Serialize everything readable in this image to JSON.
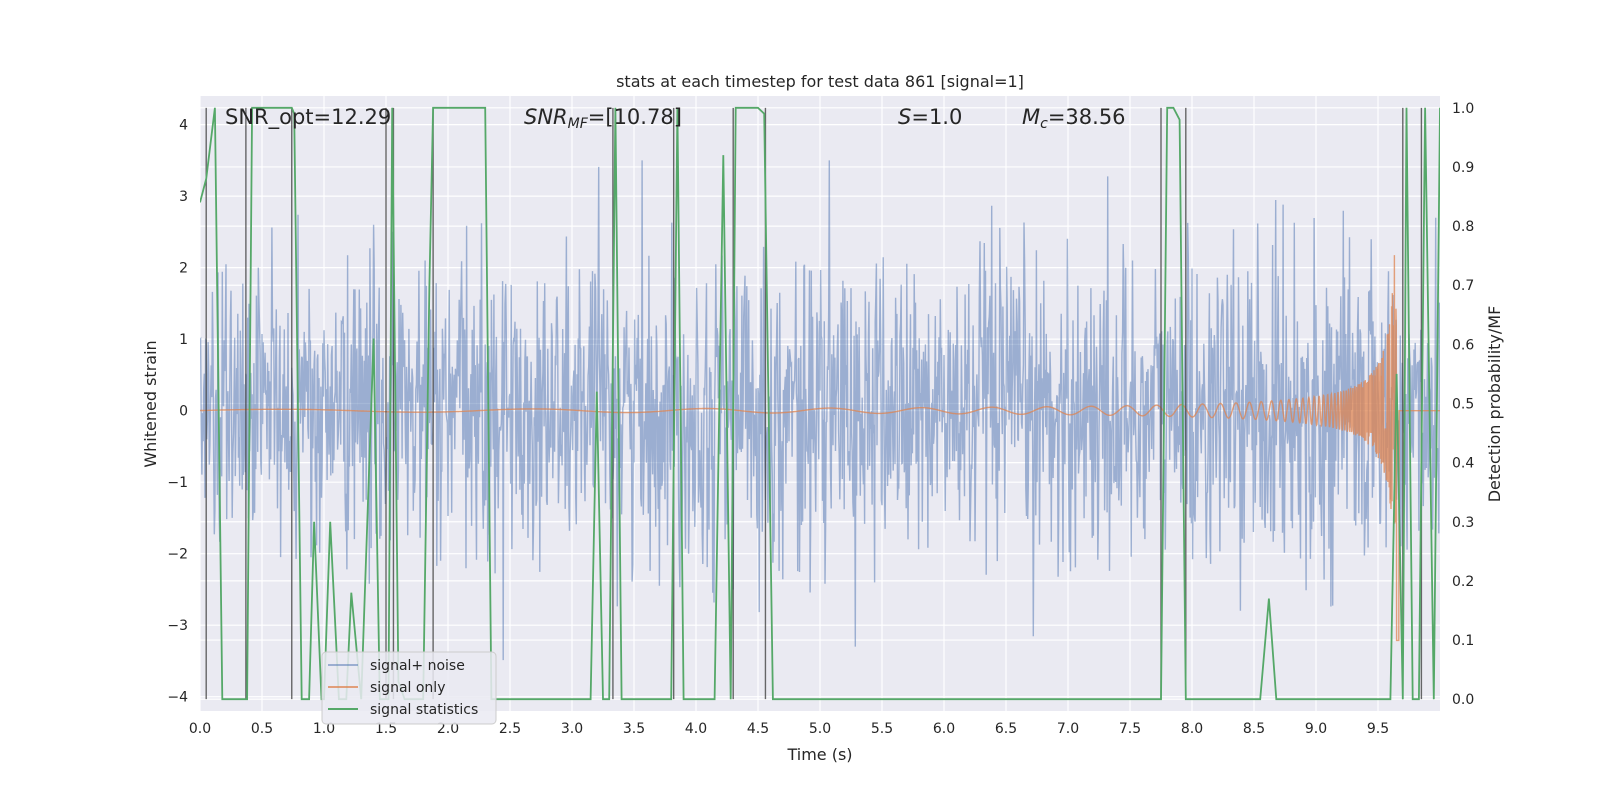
{
  "chart_data": {
    "type": "line",
    "title": "stats at each timestep for test data 861 [signal=1]",
    "xlabel": "Time (s)",
    "ylabel": "Whitened strain",
    "y2label": "Detection probability/MF",
    "xlim": [
      0.0,
      10.0
    ],
    "ylim": [
      -4.2,
      4.4
    ],
    "y2lim": [
      -0.02,
      1.02
    ],
    "xticks": [
      "0.0",
      "0.5",
      "1.0",
      "1.5",
      "2.0",
      "2.5",
      "3.0",
      "3.5",
      "4.0",
      "4.5",
      "5.0",
      "5.5",
      "6.0",
      "6.5",
      "7.0",
      "7.5",
      "8.0",
      "8.5",
      "9.0",
      "9.5"
    ],
    "yticks": [
      "4",
      "3",
      "2",
      "1",
      "0",
      "−1",
      "−2",
      "−3",
      "−4"
    ],
    "y2ticks": [
      "1.0",
      "0.9",
      "0.8",
      "0.7",
      "0.6",
      "0.5",
      "0.4",
      "0.3",
      "0.2",
      "0.1",
      "0.0"
    ],
    "grid": true,
    "legend_position": "lower-left",
    "annotations": {
      "snr_opt": "SNR_opt=12.29",
      "snr_mf_sym": "SNR",
      "snr_mf_sub": "MF",
      "snr_mf_val": "=[10.78]",
      "s_sym": "S",
      "s_val": "=1.0",
      "mc_sym": "M",
      "mc_sub": "c",
      "mc_val": "=38.56"
    },
    "series": [
      {
        "name": "signal+ noise",
        "color": "#4c72b0",
        "description": "whitened noisy strain, roughly ±2 with spikes to ±3.5",
        "noise_std": 1.0,
        "samples": 2000
      },
      {
        "name": "signal only",
        "color": "#dd8452",
        "description": "chirp growing in amplitude toward merger near t≈9.65 s",
        "peak_time": 9.65,
        "peak_amplitude": 3.3
      },
      {
        "name": "signal statistics",
        "color": "#55a868",
        "axis": "right",
        "x": [
          0.0,
          0.05,
          0.12,
          0.18,
          0.38,
          0.42,
          0.74,
          0.76,
          0.82,
          0.88,
          0.92,
          0.98,
          1.0,
          1.05,
          1.12,
          1.18,
          1.22,
          1.3,
          1.4,
          1.45,
          1.52,
          1.55,
          1.6,
          1.65,
          1.8,
          1.85,
          1.88,
          1.92,
          2.3,
          2.35,
          2.38,
          3.1,
          3.15,
          3.2,
          3.25,
          3.3,
          3.35,
          3.4,
          3.45,
          3.8,
          3.85,
          3.9,
          3.95,
          4.15,
          4.22,
          4.28,
          4.32,
          4.38,
          4.5,
          4.55,
          4.62,
          7.75,
          7.8,
          7.85,
          7.9,
          7.95,
          8.55,
          8.62,
          8.68,
          9.6,
          9.65,
          9.7,
          9.73,
          9.78,
          9.83,
          9.88,
          9.95,
          10.0
        ],
        "values": [
          0.84,
          0.88,
          1.0,
          0.0,
          0.0,
          1.0,
          1.0,
          0.99,
          0.0,
          0.0,
          0.3,
          0.0,
          0.0,
          0.3,
          0.0,
          0.0,
          0.18,
          0.0,
          0.61,
          0.0,
          0.0,
          1.0,
          0.03,
          0.0,
          0.0,
          0.7,
          1.0,
          1.0,
          1.0,
          0.0,
          0.0,
          0.0,
          0.0,
          0.52,
          0.0,
          0.0,
          1.0,
          0.0,
          0.0,
          0.0,
          1.0,
          0.0,
          0.0,
          0.0,
          0.92,
          0.0,
          1.0,
          1.0,
          1.0,
          0.99,
          0.0,
          0.0,
          1.0,
          1.0,
          0.98,
          0.0,
          0.0,
          0.17,
          0.0,
          0.0,
          0.55,
          0.0,
          1.0,
          0.0,
          0.0,
          1.0,
          0.0,
          1.0
        ]
      }
    ],
    "vertical_lines": [
      0.05,
      0.37,
      0.74,
      1.5,
      1.56,
      1.88,
      3.33,
      3.82,
      4.3,
      4.56,
      7.75,
      7.95,
      9.7,
      9.85
    ]
  }
}
